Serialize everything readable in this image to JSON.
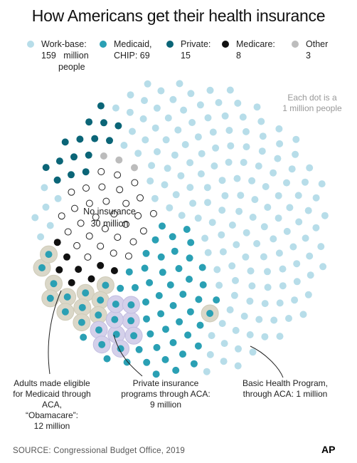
{
  "title": "How Americans get their health insurance",
  "legend": [
    {
      "label": "Work-base:",
      "count": "159",
      "unit": "million",
      "unit2": "people",
      "color": "#b7dde9"
    },
    {
      "label": "Medicaid,",
      "count": "CHIP: 69",
      "color": "#2aa0b4"
    },
    {
      "label": "Private:",
      "count": "15",
      "color": "#0b6577"
    },
    {
      "label": "Medicare:",
      "count": "8",
      "color": "#111111"
    },
    {
      "label": "Other",
      "count": "3",
      "color": "#bcbcbc"
    }
  ],
  "note": {
    "line1": "Each dot is a",
    "line2": "1 million people"
  },
  "no_insurance": {
    "line1": "No insurance",
    "line2": "30 million"
  },
  "annotations": {
    "adults": {
      "line1": "Adults made eligible",
      "line2": "for Medicaid through ACA,",
      "line3": "“Obamacare”:",
      "line4": "12 million"
    },
    "private": {
      "line1": "Private insurance",
      "line2": "programs through ACA:",
      "line3": "9 million"
    },
    "basic": {
      "line1": "Basic Health Program,",
      "line2": "through ACA: 1 million"
    }
  },
  "source": "SOURCE: Congressional Budget Office, 2019",
  "logo": "AP",
  "chart_data": {
    "type": "dot-matrix",
    "unit_value": 1,
    "series": [
      {
        "name": "Work-base",
        "value": 159,
        "color": "#b7dde9"
      },
      {
        "name": "Medicaid, CHIP",
        "value": 69,
        "color": "#2aa0b4"
      },
      {
        "name": "Private",
        "value": 15,
        "color": "#0b6577"
      },
      {
        "name": "Medicare",
        "value": 8,
        "color": "#111111"
      },
      {
        "name": "Other",
        "value": 3,
        "color": "#bcbcbc"
      },
      {
        "name": "No insurance",
        "value": 30,
        "color": "#ffffff"
      }
    ],
    "highlights": [
      {
        "name": "Adults made eligible for Medicaid through ACA",
        "value": 12
      },
      {
        "name": "Private insurance programs through ACA",
        "value": 9
      },
      {
        "name": "Basic Health Program, through ACA",
        "value": 1
      }
    ]
  }
}
